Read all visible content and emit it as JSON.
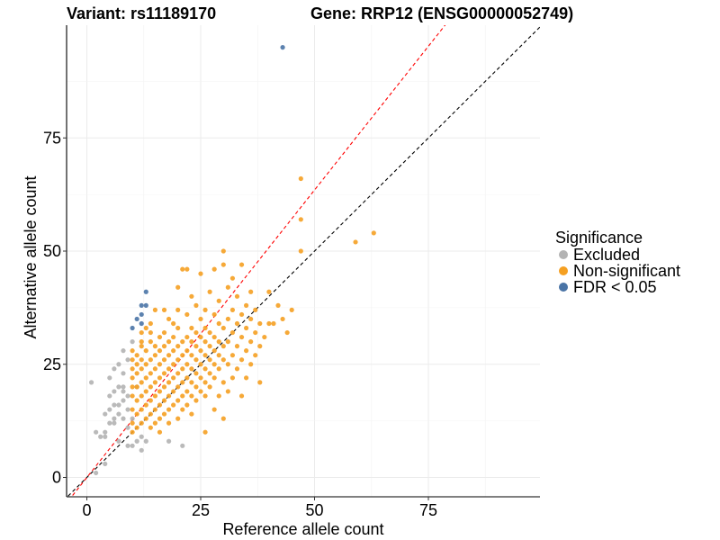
{
  "chart_data": {
    "type": "scatter",
    "title_variant": "Variant: rs11189170",
    "title_gene": "Gene: RRP12 (ENSG00000052749)",
    "xlabel": "Reference allele count",
    "ylabel": "Alternative allele count",
    "xlim": [
      -4.5,
      100
    ],
    "ylim": [
      -4.5,
      100
    ],
    "x_ticks": [
      0,
      25,
      50,
      75
    ],
    "y_ticks": [
      0,
      25,
      50,
      75
    ],
    "reference_lines": [
      {
        "name": "identity",
        "slope": 1,
        "color": "#000000"
      },
      {
        "name": "fitted",
        "slope": 1.27,
        "color": "#ff0000"
      }
    ],
    "legend": {
      "title": "Significance",
      "entries": [
        {
          "key": "excluded",
          "label": "Excluded",
          "color": "#b3b3b3"
        },
        {
          "key": "nonsig",
          "label": "Non-significant",
          "color": "#f5a022"
        },
        {
          "key": "fdr",
          "label": "FDR < 0.05",
          "color": "#4a74a6"
        }
      ]
    },
    "series": [
      {
        "name": "Excluded",
        "color": "#b3b3b3",
        "points": [
          [
            1,
            21
          ],
          [
            2,
            1
          ],
          [
            2,
            10
          ],
          [
            3,
            9
          ],
          [
            4,
            9
          ],
          [
            4,
            10
          ],
          [
            4,
            14
          ],
          [
            4,
            3
          ],
          [
            5,
            12
          ],
          [
            5,
            15
          ],
          [
            5,
            18
          ],
          [
            5,
            22
          ],
          [
            6,
            13
          ],
          [
            6,
            16
          ],
          [
            6,
            19
          ],
          [
            6,
            24
          ],
          [
            6,
            12
          ],
          [
            7,
            16
          ],
          [
            7,
            14
          ],
          [
            7,
            8
          ],
          [
            7,
            20
          ],
          [
            7,
            25
          ],
          [
            8,
            13
          ],
          [
            8,
            17
          ],
          [
            8,
            20
          ],
          [
            8,
            23
          ],
          [
            8,
            28
          ],
          [
            8,
            19
          ],
          [
            9,
            11
          ],
          [
            9,
            15
          ],
          [
            9,
            18
          ],
          [
            9,
            7
          ],
          [
            9,
            26
          ],
          [
            10,
            7
          ],
          [
            10,
            13
          ],
          [
            10,
            30
          ],
          [
            11,
            8
          ],
          [
            11,
            20
          ],
          [
            12,
            6
          ],
          [
            12,
            9
          ],
          [
            13,
            8
          ],
          [
            18,
            8
          ],
          [
            21,
            7
          ]
        ]
      },
      {
        "name": "Non-significant",
        "color": "#f5a022",
        "points": [
          [
            10,
            10
          ],
          [
            10,
            12
          ],
          [
            10,
            15
          ],
          [
            10,
            18
          ],
          [
            10,
            20
          ],
          [
            10,
            22
          ],
          [
            10,
            24
          ],
          [
            10,
            26
          ],
          [
            10,
            28
          ],
          [
            11,
            11
          ],
          [
            11,
            14
          ],
          [
            11,
            17
          ],
          [
            11,
            20
          ],
          [
            11,
            23
          ],
          [
            11,
            25
          ],
          [
            11,
            27
          ],
          [
            12,
            12
          ],
          [
            12,
            15
          ],
          [
            12,
            18
          ],
          [
            12,
            21
          ],
          [
            12,
            24
          ],
          [
            12,
            26
          ],
          [
            12,
            29
          ],
          [
            12,
            30
          ],
          [
            12,
            32
          ],
          [
            13,
            13
          ],
          [
            13,
            16
          ],
          [
            13,
            19
          ],
          [
            13,
            22
          ],
          [
            13,
            25
          ],
          [
            13,
            28
          ],
          [
            13,
            33
          ],
          [
            14,
            11
          ],
          [
            14,
            14
          ],
          [
            14,
            17
          ],
          [
            14,
            20
          ],
          [
            14,
            23
          ],
          [
            14,
            26
          ],
          [
            14,
            30
          ],
          [
            14,
            32
          ],
          [
            14,
            34
          ],
          [
            15,
            12
          ],
          [
            15,
            15
          ],
          [
            15,
            18
          ],
          [
            15,
            21
          ],
          [
            15,
            24
          ],
          [
            15,
            27
          ],
          [
            15,
            29
          ],
          [
            15,
            37
          ],
          [
            16,
            10
          ],
          [
            16,
            13
          ],
          [
            16,
            16
          ],
          [
            16,
            19
          ],
          [
            16,
            22
          ],
          [
            16,
            25
          ],
          [
            16,
            28
          ],
          [
            16,
            31
          ],
          [
            17,
            14
          ],
          [
            17,
            17
          ],
          [
            17,
            20
          ],
          [
            17,
            23
          ],
          [
            17,
            26
          ],
          [
            17,
            29
          ],
          [
            17,
            32
          ],
          [
            17,
            37
          ],
          [
            18,
            12
          ],
          [
            18,
            15
          ],
          [
            18,
            18
          ],
          [
            18,
            21
          ],
          [
            18,
            24
          ],
          [
            18,
            27
          ],
          [
            18,
            30
          ],
          [
            18,
            35
          ],
          [
            19,
            16
          ],
          [
            19,
            19
          ],
          [
            19,
            22
          ],
          [
            19,
            25
          ],
          [
            19,
            28
          ],
          [
            19,
            31
          ],
          [
            19,
            34
          ],
          [
            20,
            13
          ],
          [
            20,
            17
          ],
          [
            20,
            20
          ],
          [
            20,
            23
          ],
          [
            20,
            26
          ],
          [
            20,
            29
          ],
          [
            20,
            33
          ],
          [
            20,
            37
          ],
          [
            20,
            42
          ],
          [
            21,
            15
          ],
          [
            21,
            18
          ],
          [
            21,
            21
          ],
          [
            21,
            24
          ],
          [
            21,
            27
          ],
          [
            21,
            30
          ],
          [
            21,
            46
          ],
          [
            22,
            16
          ],
          [
            22,
            19
          ],
          [
            22,
            22
          ],
          [
            22,
            25
          ],
          [
            22,
            28
          ],
          [
            22,
            31
          ],
          [
            22,
            36
          ],
          [
            22,
            46
          ],
          [
            23,
            14
          ],
          [
            23,
            18
          ],
          [
            23,
            21
          ],
          [
            23,
            24
          ],
          [
            23,
            27
          ],
          [
            23,
            30
          ],
          [
            23,
            33
          ],
          [
            23,
            40
          ],
          [
            24,
            17
          ],
          [
            24,
            20
          ],
          [
            24,
            23
          ],
          [
            24,
            26
          ],
          [
            24,
            29
          ],
          [
            24,
            32
          ],
          [
            24,
            38
          ],
          [
            25,
            19
          ],
          [
            25,
            22
          ],
          [
            25,
            25
          ],
          [
            25,
            28
          ],
          [
            25,
            31
          ],
          [
            25,
            35
          ],
          [
            25,
            45
          ],
          [
            26,
            10
          ],
          [
            26,
            18
          ],
          [
            26,
            21
          ],
          [
            26,
            24
          ],
          [
            26,
            27
          ],
          [
            26,
            30
          ],
          [
            26,
            33
          ],
          [
            26,
            37
          ],
          [
            27,
            20
          ],
          [
            27,
            23
          ],
          [
            27,
            26
          ],
          [
            27,
            29
          ],
          [
            27,
            32
          ],
          [
            27,
            41
          ],
          [
            28,
            15
          ],
          [
            28,
            22
          ],
          [
            28,
            25
          ],
          [
            28,
            28
          ],
          [
            28,
            31
          ],
          [
            28,
            36
          ],
          [
            28,
            46
          ],
          [
            29,
            18
          ],
          [
            29,
            24
          ],
          [
            29,
            27
          ],
          [
            29,
            30
          ],
          [
            29,
            34
          ],
          [
            29,
            39
          ],
          [
            30,
            13
          ],
          [
            30,
            21
          ],
          [
            30,
            26
          ],
          [
            30,
            29
          ],
          [
            30,
            33
          ],
          [
            30,
            47
          ],
          [
            30,
            50
          ],
          [
            31,
            19
          ],
          [
            31,
            25
          ],
          [
            31,
            30
          ],
          [
            31,
            35
          ],
          [
            31,
            42
          ],
          [
            32,
            22
          ],
          [
            32,
            27
          ],
          [
            32,
            32
          ],
          [
            32,
            37
          ],
          [
            32,
            44
          ],
          [
            33,
            24
          ],
          [
            33,
            29
          ],
          [
            33,
            34
          ],
          [
            33,
            40
          ],
          [
            34,
            18
          ],
          [
            34,
            26
          ],
          [
            34,
            31
          ],
          [
            34,
            36
          ],
          [
            34,
            47
          ],
          [
            35,
            22
          ],
          [
            35,
            28
          ],
          [
            35,
            33
          ],
          [
            35,
            38
          ],
          [
            36,
            25
          ],
          [
            36,
            30
          ],
          [
            36,
            35
          ],
          [
            36,
            41
          ],
          [
            37,
            27
          ],
          [
            37,
            32
          ],
          [
            37,
            37
          ],
          [
            38,
            21
          ],
          [
            38,
            29
          ],
          [
            38,
            34
          ],
          [
            39,
            31
          ],
          [
            40,
            34
          ],
          [
            40,
            41
          ],
          [
            41,
            34
          ],
          [
            42,
            38
          ],
          [
            43,
            35
          ],
          [
            44,
            32
          ],
          [
            45,
            37
          ],
          [
            47,
            66
          ],
          [
            47,
            57
          ],
          [
            47,
            50
          ],
          [
            59,
            52
          ],
          [
            63,
            54
          ]
        ]
      },
      {
        "name": "FDR < 0.05",
        "color": "#4a74a6",
        "points": [
          [
            10,
            33
          ],
          [
            11,
            35
          ],
          [
            12,
            36
          ],
          [
            12,
            38
          ],
          [
            12,
            34
          ],
          [
            13,
            38
          ],
          [
            13,
            41
          ],
          [
            43,
            95
          ]
        ]
      }
    ]
  }
}
